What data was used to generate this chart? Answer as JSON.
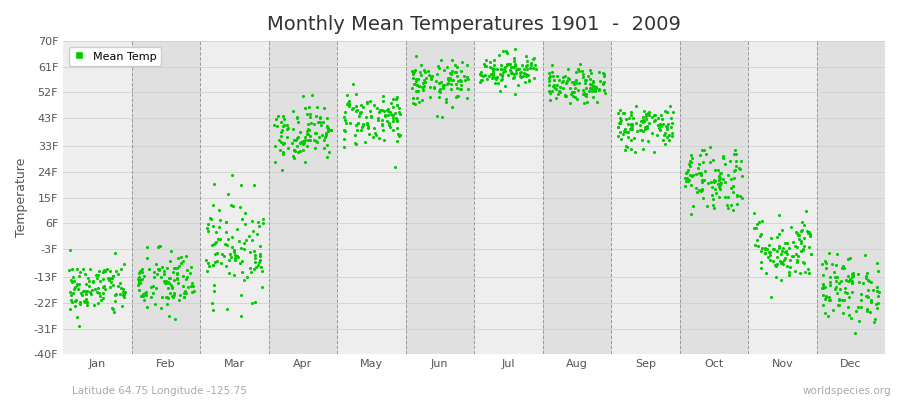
{
  "title": "Monthly Mean Temperatures 1901  -  2009",
  "ylabel": "Temperature",
  "ytick_labels": [
    "70F",
    "61F",
    "52F",
    "43F",
    "33F",
    "24F",
    "15F",
    "6F",
    "-3F",
    "-13F",
    "-22F",
    "-31F",
    "-40F"
  ],
  "ytick_values": [
    70,
    61,
    52,
    43,
    33,
    24,
    15,
    6,
    -3,
    -13,
    -22,
    -31,
    -40
  ],
  "ylim": [
    -40,
    70
  ],
  "month_names": [
    "Jan",
    "Feb",
    "Mar",
    "Apr",
    "May",
    "Jun",
    "Jul",
    "Aug",
    "Sep",
    "Oct",
    "Nov",
    "Dec"
  ],
  "month_centers": [
    1.0,
    2.0,
    3.0,
    4.0,
    5.0,
    6.0,
    7.0,
    8.0,
    9.0,
    10.0,
    11.0,
    12.0
  ],
  "dot_color": "#00CC00",
  "background_color": "#ffffff",
  "plot_bg_light": "#eeeeee",
  "plot_bg_dark": "#e0e0e0",
  "grid_color": "#999999",
  "title_fontsize": 14,
  "axis_label_fontsize": 9,
  "tick_fontsize": 8,
  "subtitle_text": "Latitude 64.75 Longitude -125.75",
  "watermark": "worldspecies.org",
  "legend_label": "Mean Temp",
  "n_years": 109,
  "monthly_means": [
    -17,
    -15,
    -2,
    38,
    43,
    55,
    60,
    54,
    40,
    22,
    -3,
    -17
  ],
  "monthly_std": [
    5,
    6,
    9,
    5,
    5,
    4,
    3,
    3,
    4,
    6,
    6,
    6
  ]
}
